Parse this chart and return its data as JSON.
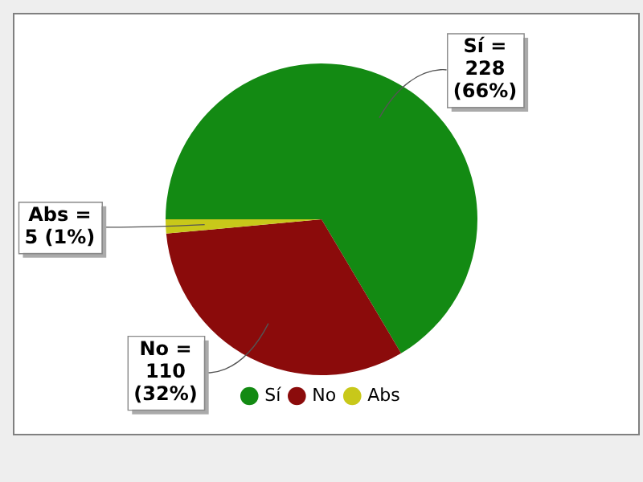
{
  "chart_data": {
    "type": "pie",
    "categories": [
      "Sí",
      "No",
      "Abs"
    ],
    "values": [
      228,
      110,
      5
    ],
    "colors": [
      "#138a13",
      "#8b0b0b",
      "#c8c81a"
    ],
    "value_labels": [
      "Sí =\n228\n(66%)",
      "No =\n110\n(32%)",
      "Abs =\n5 (1%)"
    ],
    "legend": "bottom"
  }
}
